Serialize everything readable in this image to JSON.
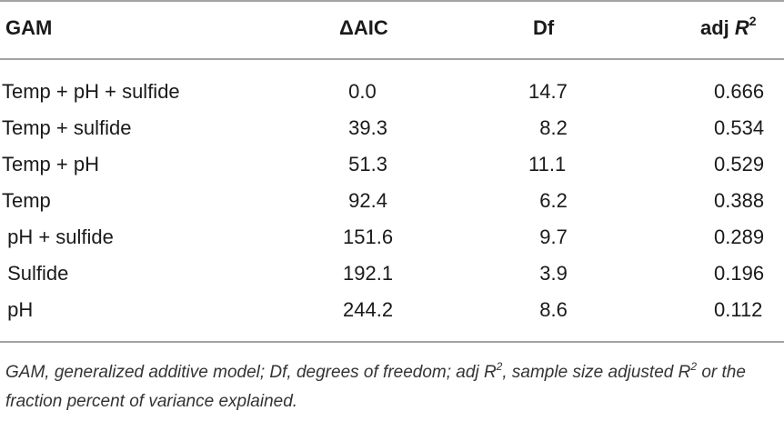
{
  "table": {
    "headers": {
      "model": "GAM",
      "daic": "ΔAIC",
      "df": "Df",
      "adj_prefix": "adj ",
      "adj_var": "R",
      "adj_sup": "2"
    },
    "rows": [
      {
        "model": "Temp + pH + sulfide",
        "daic": " 0.0",
        "df": "14.7",
        "adj_r2": "0.666"
      },
      {
        "model": "Temp + sulfide",
        "daic": " 39.3",
        "df": "  8.2",
        "adj_r2": "0.534"
      },
      {
        "model": "Temp + pH",
        "daic": " 51.3",
        "df": "11.1",
        "adj_r2": "0.529"
      },
      {
        "model": "Temp",
        "daic": " 92.4",
        "df": "  6.2",
        "adj_r2": "0.388"
      },
      {
        "model": " pH + sulfide",
        "daic": "151.6",
        "df": "  9.7",
        "adj_r2": "0.289"
      },
      {
        "model": " Sulfide",
        "daic": "192.1",
        "df": "  3.9",
        "adj_r2": "0.196"
      },
      {
        "model": " pH",
        "daic": "244.2",
        "df": "  8.6",
        "adj_r2": "0.112"
      }
    ]
  },
  "footnote": {
    "part1": "GAM, generalized additive model; Df, degrees of freedom; adj R",
    "sup1": "2",
    "part2": ", sample size adjusted R",
    "sup2": "2",
    "part3": " or the fraction percent of variance explained."
  }
}
